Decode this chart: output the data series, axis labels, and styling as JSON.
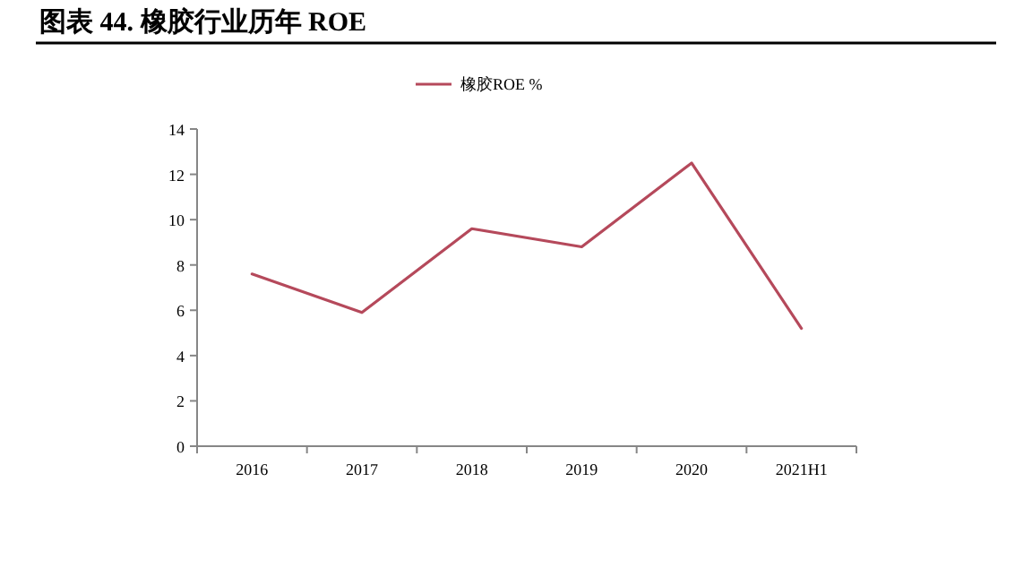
{
  "chart_data": {
    "type": "line",
    "title": "图表 44. 橡胶行业历年 ROE",
    "categories": [
      "2016",
      "2017",
      "2018",
      "2019",
      "2020",
      "2021H1"
    ],
    "series": [
      {
        "name": "橡胶ROE %",
        "color": "#b5495b",
        "values": [
          7.6,
          5.9,
          9.6,
          8.8,
          12.5,
          5.2
        ]
      }
    ],
    "ylim": [
      0,
      14
    ],
    "yticks": [
      0,
      2,
      4,
      6,
      8,
      10,
      12,
      14
    ],
    "legend": "top"
  }
}
